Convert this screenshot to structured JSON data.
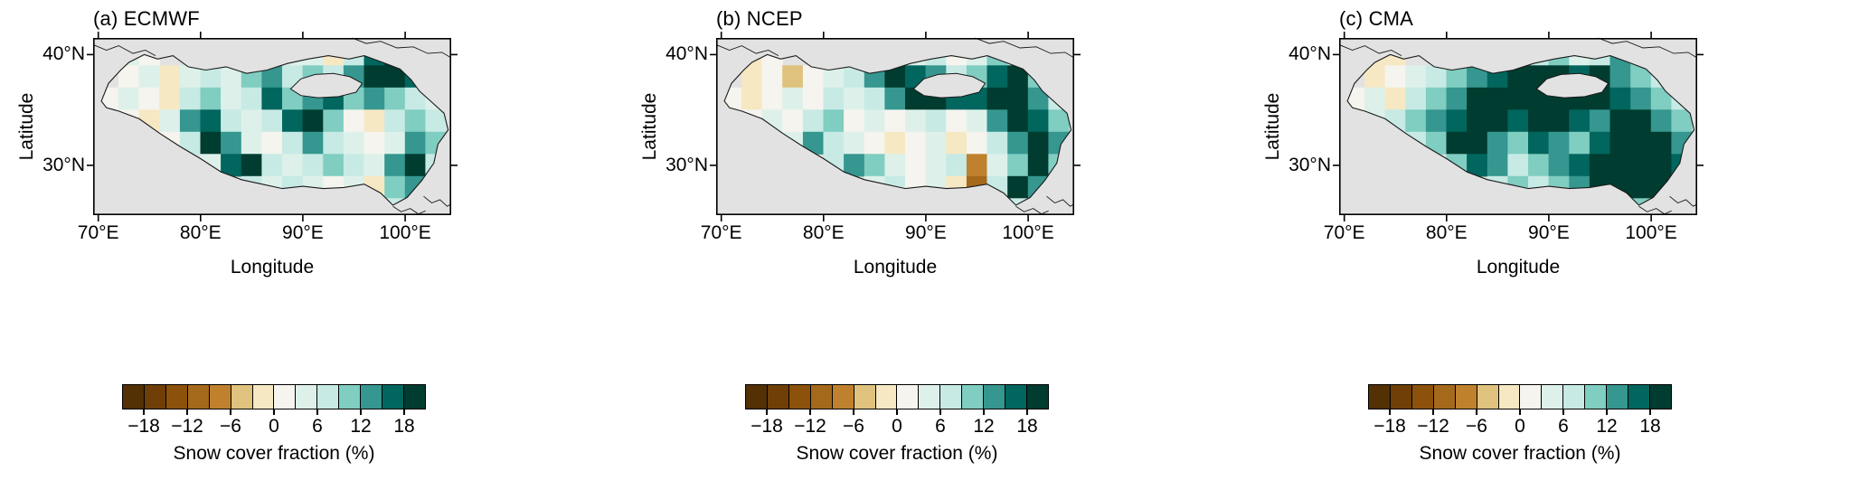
{
  "figure": {
    "map_background": "#e2e2e2",
    "outline_color": "#1a1a1a",
    "panels": [
      {
        "title": "(a) ECMWF"
      },
      {
        "title": "(b) NCEP"
      },
      {
        "title": "(c) CMA"
      }
    ],
    "axes": {
      "xlabel": "Longitude",
      "ylabel": "Latitude",
      "lon_range": [
        69.5,
        104.5
      ],
      "lat_range": [
        25.5,
        41.5
      ],
      "x_ticks": [
        {
          "v": 70,
          "label": "70°E"
        },
        {
          "v": 80,
          "label": "80°E"
        },
        {
          "v": 90,
          "label": "90°E"
        },
        {
          "v": 100,
          "label": "100°E"
        }
      ],
      "y_ticks": [
        {
          "v": 40,
          "label": "40°N"
        },
        {
          "v": 30,
          "label": "30°N"
        }
      ]
    },
    "colorbar": {
      "label": "Snow cover fraction (%)",
      "boundaries": [
        -21,
        -18,
        -15,
        -12,
        -9,
        -6,
        -3,
        0,
        3,
        6,
        9,
        12,
        15,
        18,
        21
      ],
      "colors": [
        "#543005",
        "#6f3f07",
        "#8c510a",
        "#a5691b",
        "#bf812d",
        "#dfc27d",
        "#f6e8c3",
        "#f5f4ee",
        "#ddf1ea",
        "#c7eae5",
        "#80cdc1",
        "#35978f",
        "#01665e",
        "#003c30"
      ],
      "ticks": [
        {
          "v": -18,
          "label": "−18"
        },
        {
          "v": -12,
          "label": "−12"
        },
        {
          "v": -6,
          "label": "−6"
        },
        {
          "v": 0,
          "label": "0"
        },
        {
          "v": 6,
          "label": "6"
        },
        {
          "v": 12,
          "label": "12"
        },
        {
          "v": 18,
          "label": "18"
        }
      ]
    }
  },
  "chart_data": {
    "type": "heatmap",
    "units": "%",
    "quantity": "Snow cover fraction (%)",
    "bin_min": -21,
    "bin_max": 21,
    "bin_step": 3,
    "lon_centers": [
      71,
      73,
      75,
      77,
      79,
      81,
      83,
      85,
      87,
      89,
      91,
      93,
      95,
      97,
      99,
      101,
      103
    ],
    "lat_centers": [
      40,
      38,
      36,
      34,
      32,
      30,
      28,
      26
    ],
    "cell_size_deg": 2,
    "panels": [
      {
        "name": "ECMWF",
        "values": [
          [
            null,
            3,
            0,
            null,
            null,
            null,
            null,
            null,
            null,
            3,
            3,
            -3,
            6,
            15,
            18,
            12,
            null
          ],
          [
            null,
            0,
            3,
            -3,
            3,
            6,
            3,
            9,
            12,
            6,
            9,
            6,
            12,
            18,
            18,
            15,
            6
          ],
          [
            0,
            3,
            0,
            -3,
            6,
            9,
            3,
            6,
            15,
            9,
            12,
            15,
            9,
            12,
            9,
            6,
            3
          ],
          [
            null,
            0,
            -3,
            3,
            12,
            15,
            6,
            3,
            6,
            15,
            18,
            9,
            0,
            -3,
            6,
            9,
            6
          ],
          [
            null,
            null,
            null,
            0,
            6,
            18,
            12,
            3,
            0,
            6,
            12,
            6,
            3,
            0,
            3,
            12,
            9
          ],
          [
            null,
            null,
            null,
            null,
            null,
            3,
            15,
            18,
            6,
            3,
            6,
            9,
            6,
            3,
            12,
            18,
            6
          ],
          [
            null,
            null,
            null,
            null,
            null,
            null,
            null,
            6,
            3,
            6,
            3,
            0,
            3,
            -3,
            9,
            12,
            null
          ],
          [
            null,
            null,
            null,
            null,
            null,
            null,
            null,
            null,
            null,
            null,
            null,
            null,
            null,
            null,
            6,
            3,
            null
          ]
        ]
      },
      {
        "name": "NCEP",
        "values": [
          [
            null,
            -3,
            0,
            null,
            null,
            null,
            null,
            null,
            null,
            3,
            6,
            0,
            3,
            9,
            6,
            3,
            null
          ],
          [
            null,
            -3,
            0,
            -6,
            0,
            3,
            6,
            12,
            18,
            15,
            12,
            6,
            9,
            15,
            18,
            9,
            6
          ],
          [
            0,
            -3,
            0,
            3,
            0,
            6,
            3,
            6,
            12,
            18,
            18,
            15,
            15,
            18,
            18,
            12,
            6
          ],
          [
            null,
            0,
            3,
            0,
            6,
            9,
            0,
            3,
            0,
            3,
            6,
            0,
            3,
            12,
            18,
            15,
            9
          ],
          [
            null,
            null,
            null,
            3,
            12,
            6,
            3,
            0,
            -3,
            0,
            3,
            -3,
            0,
            6,
            12,
            18,
            12
          ],
          [
            null,
            null,
            null,
            null,
            null,
            6,
            12,
            9,
            3,
            0,
            3,
            6,
            -9,
            3,
            9,
            18,
            9
          ],
          [
            null,
            null,
            null,
            null,
            null,
            null,
            null,
            3,
            6,
            0,
            3,
            -3,
            -12,
            6,
            18,
            12,
            null
          ],
          [
            null,
            null,
            null,
            null,
            null,
            null,
            null,
            null,
            null,
            null,
            null,
            null,
            null,
            null,
            6,
            3,
            null
          ]
        ]
      },
      {
        "name": "CMA",
        "values": [
          [
            null,
            -3,
            -3,
            null,
            null,
            null,
            null,
            null,
            null,
            6,
            9,
            3,
            6,
            12,
            9,
            6,
            null
          ],
          [
            null,
            -3,
            0,
            3,
            6,
            9,
            12,
            15,
            18,
            18,
            18,
            15,
            18,
            12,
            9,
            6,
            3
          ],
          [
            0,
            3,
            -3,
            6,
            9,
            12,
            18,
            18,
            18,
            18,
            18,
            18,
            18,
            15,
            12,
            9,
            6
          ],
          [
            null,
            3,
            6,
            9,
            12,
            15,
            18,
            18,
            15,
            18,
            18,
            15,
            12,
            18,
            18,
            12,
            9
          ],
          [
            null,
            null,
            null,
            6,
            9,
            18,
            18,
            12,
            9,
            15,
            12,
            9,
            15,
            18,
            18,
            18,
            12
          ],
          [
            null,
            null,
            null,
            null,
            null,
            9,
            15,
            12,
            6,
            9,
            12,
            15,
            18,
            18,
            18,
            18,
            15
          ],
          [
            null,
            null,
            null,
            null,
            null,
            null,
            null,
            6,
            9,
            6,
            9,
            12,
            18,
            18,
            18,
            18,
            null
          ],
          [
            null,
            null,
            null,
            null,
            null,
            null,
            null,
            null,
            null,
            null,
            null,
            null,
            null,
            null,
            9,
            6,
            null
          ]
        ]
      }
    ]
  }
}
